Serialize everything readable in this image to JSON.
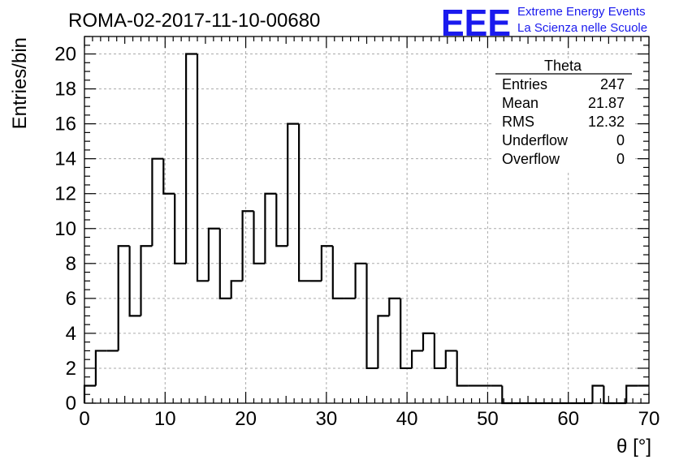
{
  "chart_data": {
    "type": "bar",
    "histogram": true,
    "title": "ROMA-02-2017-11-10-00680",
    "xlabel": "θ [°]",
    "ylabel": "Entries/bin",
    "xlim": [
      0,
      70
    ],
    "ylim": [
      0,
      21
    ],
    "grid": true,
    "x_ticks": [
      0,
      10,
      20,
      30,
      40,
      50,
      60,
      70
    ],
    "y_ticks": [
      0,
      2,
      4,
      6,
      8,
      10,
      12,
      14,
      16,
      18,
      20
    ],
    "bin_width": 1.4,
    "bin_edges_start": 0,
    "values": [
      1,
      3,
      3,
      9,
      5,
      9,
      14,
      12,
      8,
      20,
      7,
      10,
      6,
      7,
      11,
      8,
      12,
      9,
      16,
      7,
      7,
      9,
      6,
      6,
      8,
      2,
      5,
      6,
      2,
      3,
      4,
      2,
      3,
      1,
      1,
      1,
      1,
      0,
      0,
      0,
      0,
      0,
      0,
      0,
      0,
      1,
      0,
      0,
      1,
      1
    ]
  },
  "stats_box": {
    "name": "Theta",
    "rows": [
      {
        "label": "Entries",
        "value": "247"
      },
      {
        "label": "Mean",
        "value": "21.87"
      },
      {
        "label": "RMS",
        "value": "12.32"
      },
      {
        "label": "Underflow",
        "value": "0"
      },
      {
        "label": "Overflow",
        "value": "0"
      }
    ]
  },
  "logo": {
    "mark": "EEE",
    "line1": "Extreme Energy Events",
    "line2": "La Scienza nelle Scuole",
    "color": "#1a1aee"
  }
}
